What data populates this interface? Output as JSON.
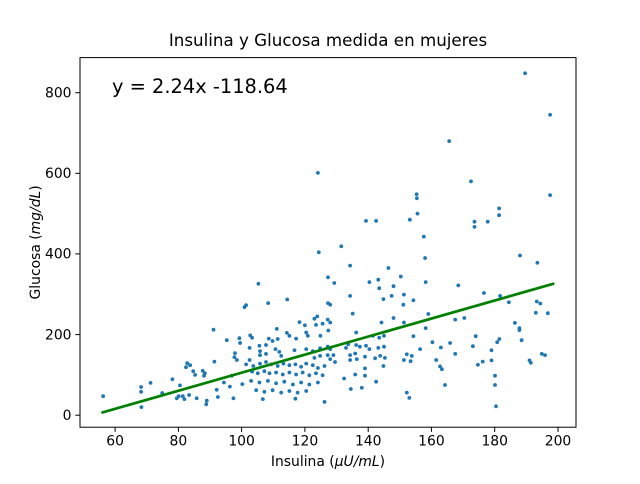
{
  "chart_data": {
    "type": "scatter",
    "title": "Insulina y Glucosa medida en mujeres",
    "annotation": "y = 2.24x -118.64",
    "xlabel": "Insulina (μU/mL)",
    "ylabel": "Glucosa (mg/dL)",
    "xlabel_parts": [
      "Insulina (",
      "μU/mL",
      ")"
    ],
    "ylabel_parts": [
      "Glucosa (",
      "mg/dL",
      ")"
    ],
    "xticks": [
      60,
      80,
      100,
      120,
      140,
      160,
      180,
      200
    ],
    "yticks": [
      0,
      200,
      400,
      600,
      800
    ],
    "xlim": [
      48.9,
      205.7
    ],
    "ylim": [
      -29.8,
      887
    ],
    "grid": false,
    "legend": "none",
    "colors": {
      "points": "#1f77b4",
      "line": "#008000",
      "axes": "#000000",
      "background": "#ffffff"
    },
    "trendline": {
      "slope": 2.24,
      "intercept": -118.64,
      "x_start": 56.0,
      "x_end": 198.5,
      "width": 2.7
    },
    "point_radius": 1.9,
    "points": [
      [
        56.2,
        47
      ],
      [
        68.2,
        70
      ],
      [
        68.2,
        58
      ],
      [
        68.3,
        20
      ],
      [
        71.2,
        80
      ],
      [
        74.9,
        55
      ],
      [
        78.1,
        89
      ],
      [
        79.5,
        42
      ],
      [
        80.1,
        47
      ],
      [
        80.5,
        74
      ],
      [
        81.4,
        47
      ],
      [
        81.9,
        40
      ],
      [
        82.4,
        119
      ],
      [
        82.8,
        129
      ],
      [
        83.7,
        124
      ],
      [
        83.4,
        50
      ],
      [
        84.7,
        109
      ],
      [
        85.3,
        100
      ],
      [
        85.8,
        42
      ],
      [
        87.7,
        110
      ],
      [
        88.1,
        98
      ],
      [
        88.4,
        104
      ],
      [
        88.8,
        27
      ],
      [
        89.0,
        36
      ],
      [
        91.1,
        212
      ],
      [
        91.4,
        133
      ],
      [
        92.1,
        63
      ],
      [
        92.5,
        45
      ],
      [
        94.4,
        81
      ],
      [
        95.3,
        186
      ],
      [
        96.3,
        71
      ],
      [
        96.9,
        98
      ],
      [
        97.4,
        42
      ],
      [
        97.7,
        144
      ],
      [
        97.9,
        154
      ],
      [
        98.5,
        137
      ],
      [
        99.3,
        191
      ],
      [
        99.5,
        179
      ],
      [
        100.2,
        77
      ],
      [
        100.9,
        268
      ],
      [
        103.3,
        192
      ],
      [
        108.6,
        190
      ],
      [
        109.8,
        184
      ],
      [
        111.4,
        189
      ],
      [
        115.1,
        197
      ],
      [
        117.2,
        190
      ],
      [
        120.9,
        197
      ],
      [
        124.9,
        197
      ],
      [
        102.5,
        167
      ],
      [
        105.6,
        172
      ],
      [
        107.7,
        174
      ],
      [
        105.8,
        159
      ],
      [
        105.8,
        149
      ],
      [
        107.7,
        152
      ],
      [
        110.7,
        164
      ],
      [
        111.9,
        157
      ],
      [
        112.5,
        147
      ],
      [
        116.7,
        161
      ],
      [
        120.4,
        164
      ],
      [
        122.5,
        159
      ],
      [
        124.8,
        166
      ],
      [
        127.2,
        170
      ],
      [
        127.2,
        149
      ],
      [
        124.8,
        147
      ],
      [
        123.0,
        142
      ],
      [
        102.5,
        137
      ],
      [
        101.4,
        126
      ],
      [
        103.7,
        122
      ],
      [
        105.8,
        128
      ],
      [
        107.7,
        132
      ],
      [
        109.3,
        126
      ],
      [
        111.4,
        122
      ],
      [
        113.2,
        128
      ],
      [
        115.1,
        124
      ],
      [
        117.0,
        126
      ],
      [
        118.8,
        120
      ],
      [
        120.4,
        128
      ],
      [
        122.5,
        124
      ],
      [
        124.1,
        117
      ],
      [
        126.2,
        122
      ],
      [
        103.3,
        108
      ],
      [
        105.1,
        104
      ],
      [
        107.2,
        109
      ],
      [
        108.8,
        104
      ],
      [
        110.9,
        106
      ],
      [
        113.0,
        101
      ],
      [
        115.1,
        106
      ],
      [
        117.2,
        101
      ],
      [
        119.3,
        106
      ],
      [
        121.4,
        99
      ],
      [
        123.5,
        104
      ],
      [
        125.6,
        99
      ],
      [
        103.0,
        85
      ],
      [
        105.6,
        81
      ],
      [
        108.3,
        85
      ],
      [
        110.9,
        79
      ],
      [
        113.5,
        83
      ],
      [
        116.2,
        76
      ],
      [
        118.8,
        81
      ],
      [
        121.4,
        76
      ],
      [
        124.1,
        81
      ],
      [
        104.6,
        62
      ],
      [
        107.2,
        58
      ],
      [
        109.8,
        62
      ],
      [
        112.5,
        56
      ],
      [
        115.1,
        60
      ],
      [
        117.7,
        56
      ],
      [
        120.4,
        60
      ],
      [
        117.0,
        41
      ],
      [
        106.7,
        40
      ],
      [
        126.2,
        33
      ],
      [
        124.4,
        404
      ],
      [
        105.3,
        326
      ],
      [
        127.3,
        342
      ],
      [
        108.4,
        278
      ],
      [
        114.4,
        287
      ],
      [
        101.4,
        273
      ],
      [
        127.3,
        278
      ],
      [
        118.3,
        231
      ],
      [
        120.0,
        223
      ],
      [
        123.0,
        239
      ],
      [
        123.9,
        245
      ],
      [
        123.5,
        224
      ],
      [
        125.6,
        227
      ],
      [
        127.2,
        237
      ],
      [
        111.1,
        214
      ],
      [
        114.3,
        204
      ],
      [
        120.4,
        205
      ],
      [
        127.4,
        210
      ],
      [
        102.7,
        198
      ],
      [
        131.5,
        419
      ],
      [
        134.3,
        371
      ],
      [
        146.4,
        365
      ],
      [
        150.3,
        344
      ],
      [
        129.3,
        328
      ],
      [
        140.4,
        330
      ],
      [
        143.2,
        336
      ],
      [
        143.5,
        315
      ],
      [
        148.0,
        320
      ],
      [
        151.3,
        299
      ],
      [
        134.3,
        296
      ],
      [
        144.8,
        288
      ],
      [
        147.4,
        296
      ],
      [
        128.0,
        274
      ],
      [
        151.1,
        274
      ],
      [
        135.1,
        252
      ],
      [
        148.0,
        241
      ],
      [
        144.2,
        230
      ],
      [
        151.3,
        230
      ],
      [
        128.0,
        230
      ],
      [
        136.2,
        205
      ],
      [
        141.5,
        197
      ],
      [
        143.5,
        192
      ],
      [
        145.0,
        197
      ],
      [
        128.0,
        164
      ],
      [
        129.0,
        149
      ],
      [
        128.0,
        139
      ],
      [
        129.5,
        132
      ],
      [
        133.0,
        167
      ],
      [
        133.7,
        176
      ],
      [
        136.2,
        174
      ],
      [
        137.4,
        170
      ],
      [
        139.3,
        172
      ],
      [
        140.4,
        164
      ],
      [
        143.2,
        167
      ],
      [
        145.0,
        170
      ],
      [
        134.3,
        149
      ],
      [
        135.9,
        153
      ],
      [
        134.3,
        137
      ],
      [
        136.4,
        139
      ],
      [
        139.0,
        145
      ],
      [
        142.2,
        141
      ],
      [
        143.8,
        147
      ],
      [
        145.3,
        142
      ],
      [
        152.2,
        151
      ],
      [
        153.8,
        147
      ],
      [
        151.3,
        137
      ],
      [
        153.4,
        134
      ],
      [
        144.8,
        122
      ],
      [
        139.0,
        116
      ],
      [
        135.9,
        101
      ],
      [
        139.0,
        98
      ],
      [
        132.4,
        91
      ],
      [
        142.5,
        83
      ],
      [
        138.0,
        68
      ],
      [
        134.5,
        65
      ],
      [
        152.2,
        56
      ],
      [
        153.0,
        43
      ],
      [
        158.0,
        390
      ],
      [
        188.0,
        396
      ],
      [
        193.5,
        378
      ],
      [
        158.2,
        330
      ],
      [
        168.5,
        322
      ],
      [
        176.6,
        303
      ],
      [
        154.3,
        285
      ],
      [
        181.7,
        296
      ],
      [
        184.5,
        280
      ],
      [
        193.3,
        282
      ],
      [
        194.4,
        277
      ],
      [
        196.8,
        253
      ],
      [
        159.0,
        251
      ],
      [
        167.5,
        237
      ],
      [
        170.4,
        241
      ],
      [
        158.2,
        216
      ],
      [
        154.3,
        196
      ],
      [
        186.4,
        229
      ],
      [
        187.8,
        216
      ],
      [
        187.8,
        211
      ],
      [
        188.5,
        186
      ],
      [
        174.0,
        196
      ],
      [
        173.1,
        171
      ],
      [
        160.3,
        181
      ],
      [
        165.9,
        179
      ],
      [
        163.0,
        168
      ],
      [
        180.8,
        181
      ],
      [
        181.5,
        189
      ],
      [
        156.4,
        164
      ],
      [
        167.5,
        152
      ],
      [
        161.5,
        137
      ],
      [
        179.0,
        161
      ],
      [
        176.2,
        133
      ],
      [
        179.0,
        136
      ],
      [
        194.9,
        152
      ],
      [
        191.0,
        136
      ],
      [
        162.7,
        121
      ],
      [
        163.3,
        114
      ],
      [
        174.7,
        125
      ],
      [
        180.1,
        98
      ],
      [
        180.1,
        75
      ],
      [
        164.3,
        75
      ],
      [
        180.4,
        22
      ],
      [
        193.0,
        254
      ],
      [
        195.9,
        149
      ],
      [
        191.4,
        130
      ],
      [
        124.1,
        601
      ],
      [
        139.3,
        482
      ],
      [
        142.5,
        482
      ],
      [
        153.2,
        485
      ],
      [
        189.6,
        848
      ],
      [
        197.5,
        745
      ],
      [
        165.6,
        680
      ],
      [
        172.5,
        580
      ],
      [
        155.3,
        548
      ],
      [
        155.4,
        538
      ],
      [
        197.5,
        546
      ],
      [
        155.6,
        500
      ],
      [
        181.4,
        513
      ],
      [
        181.4,
        496
      ],
      [
        173.6,
        480
      ],
      [
        173.6,
        467
      ],
      [
        177.8,
        480
      ],
      [
        157.6,
        443
      ]
    ]
  }
}
